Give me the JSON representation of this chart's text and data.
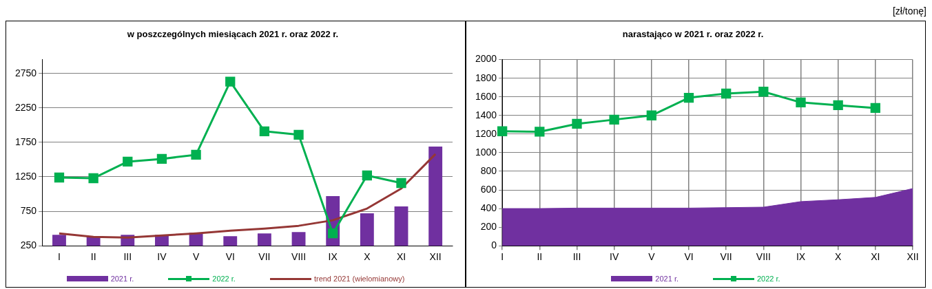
{
  "chart_data": [
    {
      "type": "bar",
      "title": "w poszczególnych miesiącach 2021 r. oraz 2022 r.",
      "categories": [
        "I",
        "II",
        "III",
        "IV",
        "V",
        "VI",
        "VII",
        "VIII",
        "IX",
        "X",
        "XI",
        "XII"
      ],
      "ylim": [
        250,
        2950
      ],
      "yticks": [
        250,
        750,
        1250,
        1750,
        2250,
        2750
      ],
      "grid": "y",
      "legend": "bottom",
      "series": [
        {
          "name": "2021 r.",
          "type": "bar",
          "color": "#7030a0",
          "values": [
            410,
            390,
            410,
            410,
            440,
            390,
            430,
            450,
            970,
            720,
            820,
            1690
          ]
        },
        {
          "name": "2022 r.",
          "type": "line",
          "color": "#00b050",
          "marker": "square",
          "values": [
            1240,
            1230,
            1470,
            1510,
            1570,
            2630,
            1910,
            1860,
            430,
            1270,
            1160,
            null
          ]
        },
        {
          "name": "trend 2021 (wielomianowy)",
          "type": "line",
          "color": "#953735",
          "marker": "none",
          "values": [
            430,
            380,
            370,
            400,
            430,
            470,
            500,
            540,
            620,
            790,
            1080,
            1580
          ]
        }
      ]
    },
    {
      "type": "area",
      "title": "narastająco w 2021 r. oraz 2022 r.",
      "annotations": [
        "[zł/tonę]"
      ],
      "categories": [
        "I",
        "II",
        "III",
        "IV",
        "V",
        "VI",
        "VII",
        "VIII",
        "IX",
        "X",
        "XI",
        "XII"
      ],
      "ylim": [
        0,
        2000
      ],
      "yticks": [
        0,
        200,
        400,
        600,
        800,
        1000,
        1200,
        1400,
        1600,
        1800,
        2000
      ],
      "grid": true,
      "legend": "bottom",
      "series": [
        {
          "name": "2021 r.",
          "type": "area",
          "color": "#7030a0",
          "values": [
            400,
            400,
            405,
            405,
            405,
            405,
            410,
            415,
            475,
            495,
            520,
            615
          ]
        },
        {
          "name": "2022 r.",
          "type": "line",
          "color": "#00b050",
          "marker": "square",
          "values": [
            1230,
            1225,
            1310,
            1355,
            1400,
            1590,
            1635,
            1655,
            1540,
            1510,
            1480,
            null
          ]
        }
      ]
    }
  ]
}
